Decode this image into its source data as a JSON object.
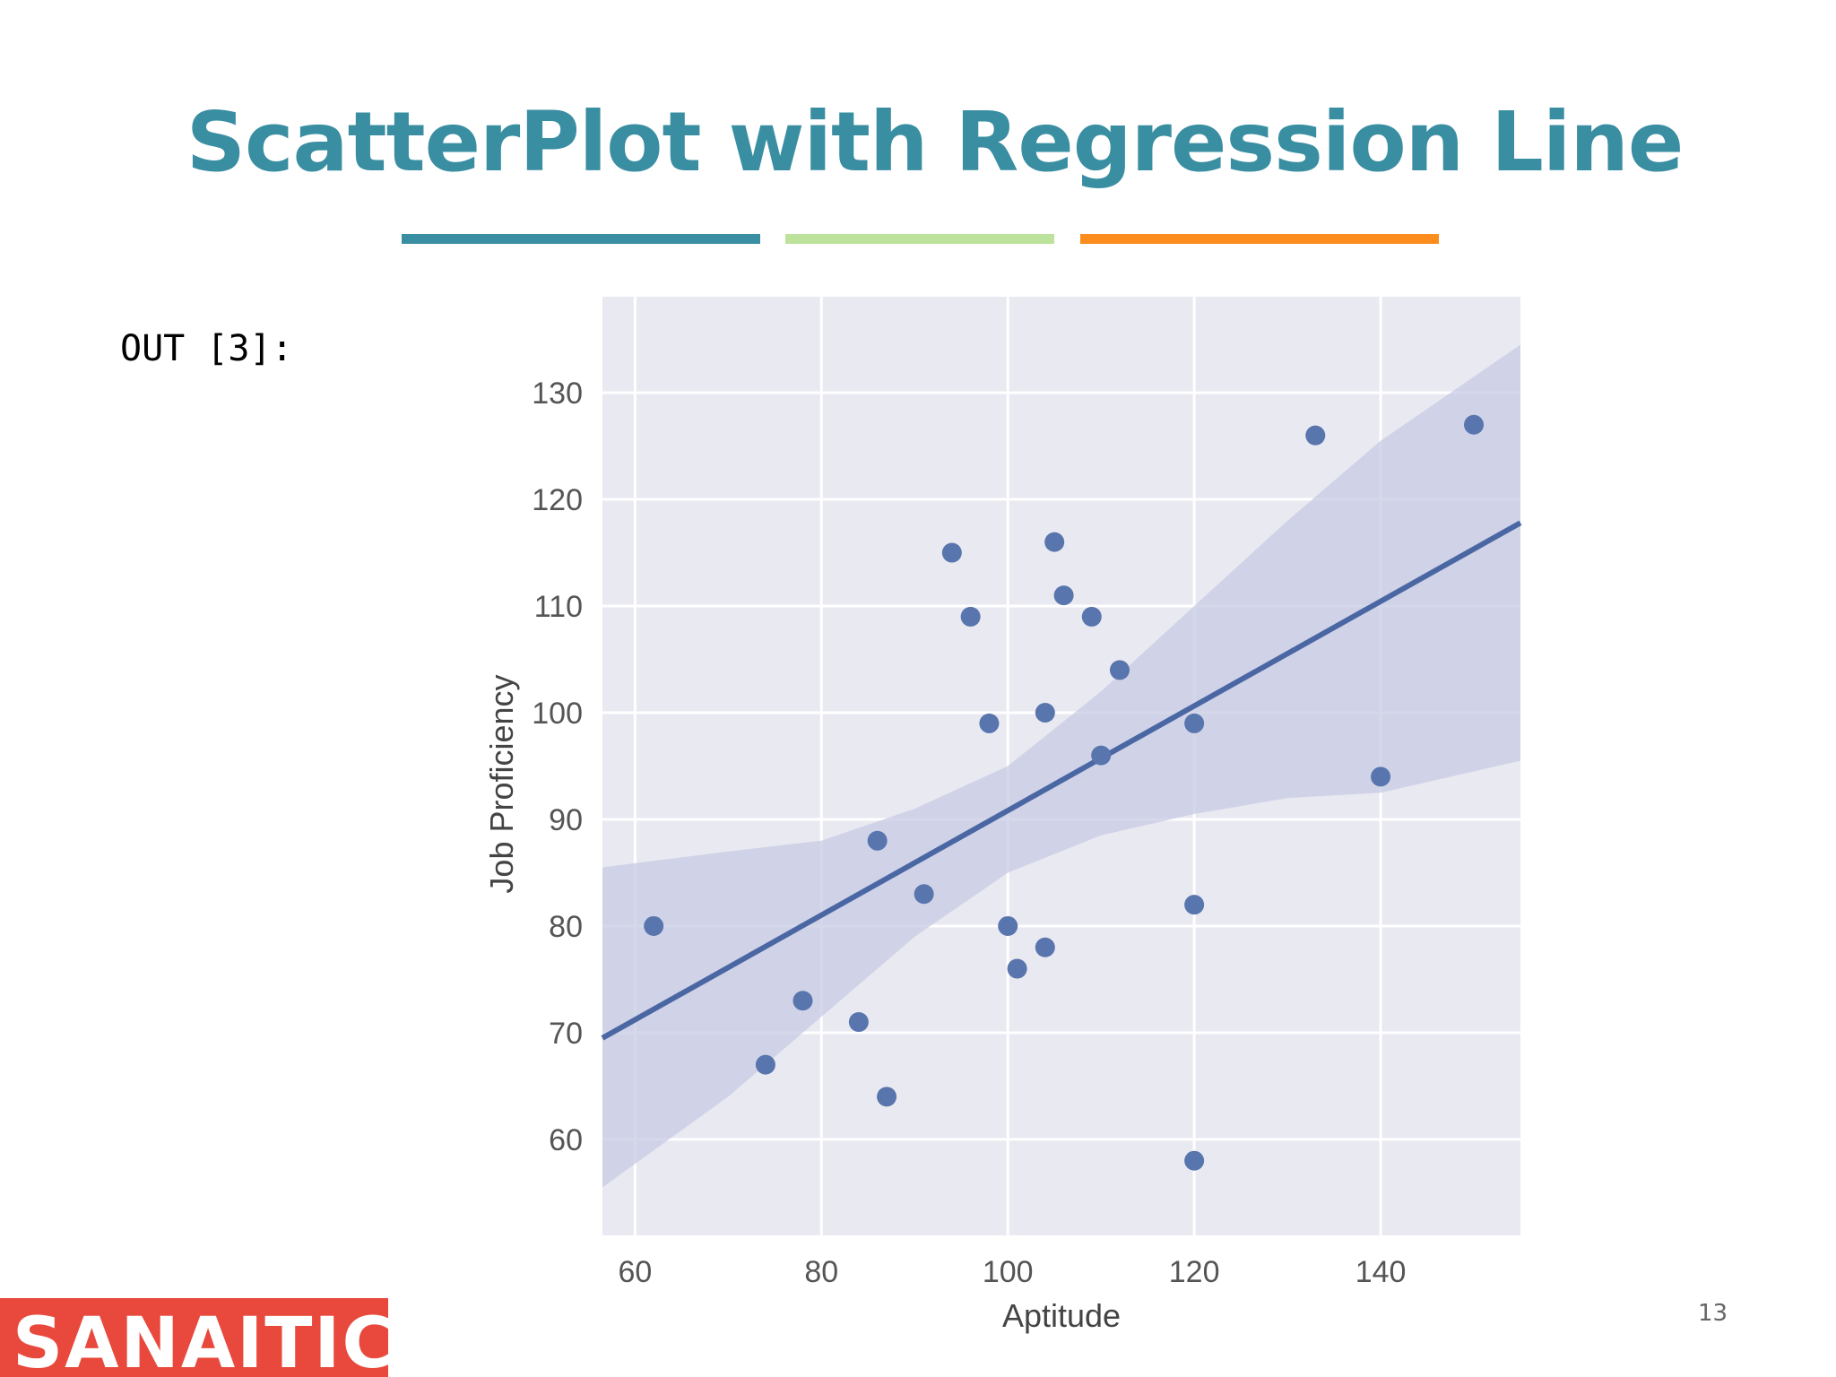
{
  "slide": {
    "title": "ScatterPlot with Regression Line",
    "output_label": "OUT [3]:",
    "page_number": "13",
    "logo_text": "SANAITICS",
    "accent_colors": [
      "#3a8ea2",
      "#bde29b",
      "#fb8c1d"
    ]
  },
  "chart_data": {
    "type": "scatter",
    "title": "",
    "xlabel": "Aptitude",
    "ylabel": "Job Proficiency",
    "xlim": [
      56.5,
      155
    ],
    "ylim": [
      51,
      139
    ],
    "xticks": [
      60,
      80,
      100,
      120,
      140
    ],
    "yticks": [
      60,
      70,
      80,
      90,
      100,
      110,
      120,
      130
    ],
    "grid": true,
    "background": "#e9e9f1",
    "point_color": "#5875ad",
    "line_color": "#4a67a3",
    "band_color": "#c7cbe3",
    "points": [
      {
        "x": 62,
        "y": 80
      },
      {
        "x": 74,
        "y": 67
      },
      {
        "x": 78,
        "y": 73
      },
      {
        "x": 84,
        "y": 71
      },
      {
        "x": 86,
        "y": 88
      },
      {
        "x": 87,
        "y": 64
      },
      {
        "x": 91,
        "y": 83
      },
      {
        "x": 94,
        "y": 115
      },
      {
        "x": 96,
        "y": 109
      },
      {
        "x": 98,
        "y": 99
      },
      {
        "x": 100,
        "y": 80
      },
      {
        "x": 101,
        "y": 76
      },
      {
        "x": 104,
        "y": 100
      },
      {
        "x": 104,
        "y": 78
      },
      {
        "x": 105,
        "y": 116
      },
      {
        "x": 106,
        "y": 111
      },
      {
        "x": 109,
        "y": 109
      },
      {
        "x": 110,
        "y": 96
      },
      {
        "x": 112,
        "y": 104
      },
      {
        "x": 120,
        "y": 99
      },
      {
        "x": 120,
        "y": 82
      },
      {
        "x": 120,
        "y": 58
      },
      {
        "x": 133,
        "y": 126
      },
      {
        "x": 140,
        "y": 94
      },
      {
        "x": 150,
        "y": 127
      }
    ],
    "regression_line": {
      "x": [
        56.5,
        155
      ],
      "y": [
        69.5,
        117.8
      ]
    },
    "confidence_band": {
      "x": [
        56.5,
        70,
        80,
        90,
        100,
        110,
        120,
        130,
        140,
        155
      ],
      "upper": [
        85.5,
        87,
        88,
        91,
        95,
        102,
        110,
        118,
        125.5,
        134.5
      ],
      "lower": [
        55.5,
        64,
        71.5,
        79,
        85,
        88.5,
        90.5,
        92,
        92.5,
        95.5
      ]
    }
  }
}
